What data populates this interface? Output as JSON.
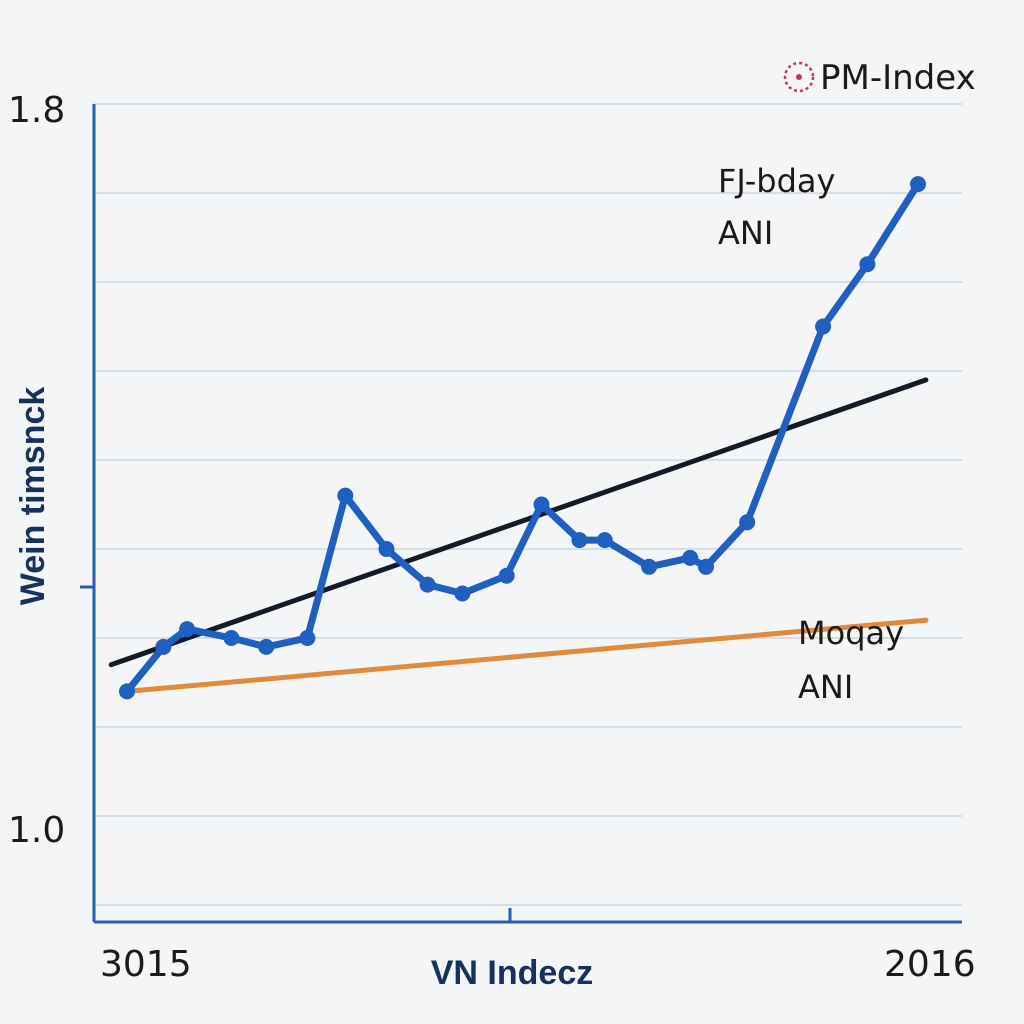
{
  "chart_data": {
    "type": "line",
    "title": "",
    "xlabel": "VN Indecz",
    "ylabel": "Wein timsnck",
    "x_tick_labels": [
      "3015",
      "2016"
    ],
    "y_tick_labels": [
      "1.0",
      "1.8"
    ],
    "ylim": [
      0.9,
      1.8
    ],
    "grid": true,
    "legend": {
      "position": "top-right",
      "entries": [
        "PM-Index"
      ]
    },
    "series": [
      {
        "name": "PM-Index",
        "color": "#1f5fbf",
        "style": "line-with-markers",
        "points": [
          [
            0.0,
            1.14
          ],
          [
            0.046,
            1.19
          ],
          [
            0.076,
            1.21
          ],
          [
            0.132,
            1.2
          ],
          [
            0.176,
            1.19
          ],
          [
            0.228,
            1.2
          ],
          [
            0.276,
            1.36
          ],
          [
            0.328,
            1.3
          ],
          [
            0.38,
            1.26
          ],
          [
            0.424,
            1.25
          ],
          [
            0.48,
            1.27
          ],
          [
            0.524,
            1.35
          ],
          [
            0.572,
            1.31
          ],
          [
            0.604,
            1.31
          ],
          [
            0.66,
            1.28
          ],
          [
            0.712,
            1.29
          ],
          [
            0.732,
            1.28
          ],
          [
            0.784,
            1.33
          ],
          [
            0.88,
            1.55
          ],
          [
            0.936,
            1.62
          ],
          [
            1.0,
            1.71
          ]
        ]
      },
      {
        "style": "line",
        "color": "#141a26",
        "points": [
          [
            -0.02,
            1.17
          ],
          [
            1.01,
            1.49
          ]
        ]
      },
      {
        "style": "line",
        "color": "#e08a3a",
        "points": [
          [
            0.0,
            1.14
          ],
          [
            1.01,
            1.22
          ]
        ]
      }
    ],
    "annotations": [
      {
        "lines": [
          "FJ-bday",
          "ANI"
        ]
      },
      {
        "lines": [
          "Moqay",
          "ANI"
        ]
      }
    ]
  }
}
